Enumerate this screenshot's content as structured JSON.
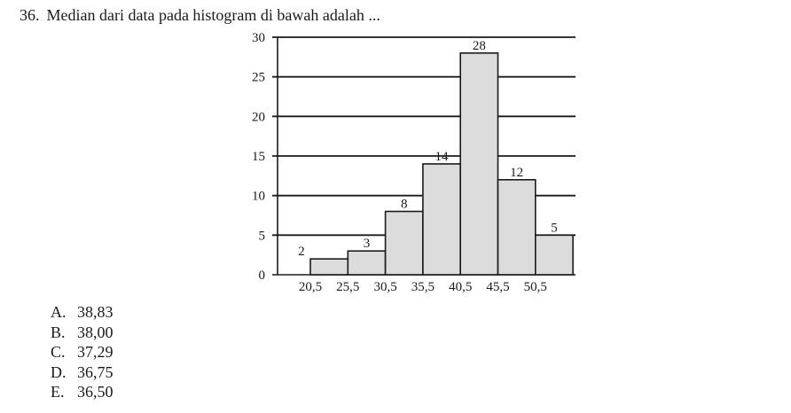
{
  "question": {
    "number": "36.",
    "text": "Median dari data pada histogram di bawah adalah ..."
  },
  "chart_data": {
    "type": "bar",
    "subtype": "histogram",
    "categories": [
      "20,5",
      "25,5",
      "30,5",
      "35,5",
      "40,5",
      "45,5",
      "50,5"
    ],
    "bin_edges": [
      20.5,
      25.5,
      30.5,
      35.5,
      40.5,
      45.5,
      50.5
    ],
    "values": [
      2,
      3,
      8,
      14,
      28,
      12,
      5
    ],
    "value_labels": [
      "2",
      "3",
      "8",
      "14",
      "28",
      "12",
      "5"
    ],
    "y_ticks": [
      "0",
      "5",
      "10",
      "15",
      "20",
      "25",
      "30"
    ],
    "ylim": [
      0,
      30
    ],
    "grid": true,
    "bar_fill": "#dcdcdc",
    "bar_stroke": "#1a1a1a"
  },
  "options": [
    {
      "letter": "A.",
      "value": "38,83"
    },
    {
      "letter": "B.",
      "value": "38,00"
    },
    {
      "letter": "C.",
      "value": "37,29"
    },
    {
      "letter": "D.",
      "value": "36,75"
    },
    {
      "letter": "E.",
      "value": "36,50"
    }
  ]
}
